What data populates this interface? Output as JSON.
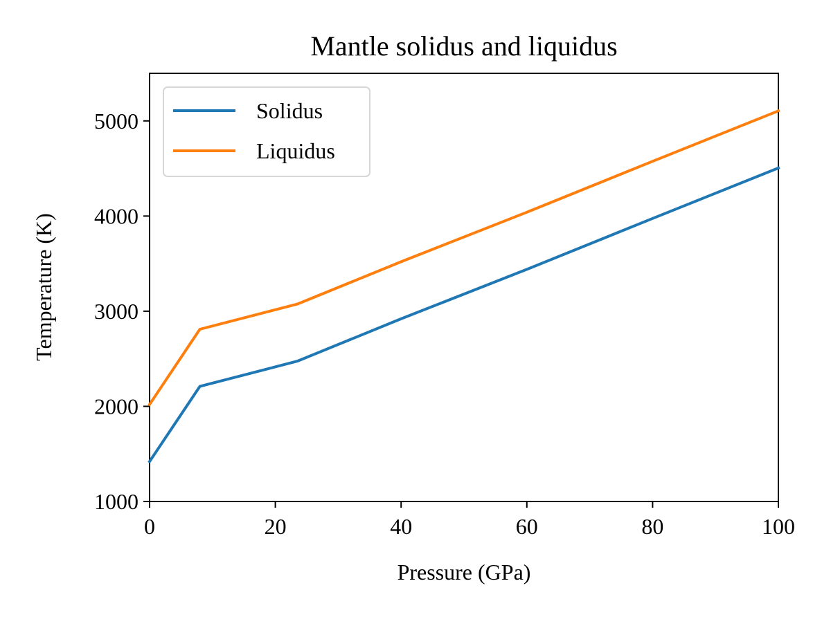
{
  "chart_data": {
    "type": "line",
    "title": "Mantle solidus and liquidus",
    "xlabel": "Pressure (GPa)",
    "ylabel": "Temperature (K)",
    "xlim": [
      0,
      100
    ],
    "ylim": [
      1000,
      5500
    ],
    "xticks": [
      0,
      20,
      40,
      60,
      80,
      100
    ],
    "yticks": [
      1000,
      2000,
      3000,
      4000,
      5000
    ],
    "grid": false,
    "legend_position": "top-left",
    "series": [
      {
        "name": "Solidus",
        "color": "#1f77b4",
        "points": [
          [
            0,
            1420
          ],
          [
            8,
            2210
          ],
          [
            23.5,
            2475
          ],
          [
            40,
            2920
          ],
          [
            60,
            3440
          ],
          [
            80,
            3975
          ],
          [
            100,
            4505
          ]
        ]
      },
      {
        "name": "Liquidus",
        "color": "#ff7f0e",
        "points": [
          [
            0,
            2020
          ],
          [
            8,
            2810
          ],
          [
            23.5,
            3075
          ],
          [
            40,
            3520
          ],
          [
            60,
            4040
          ],
          [
            80,
            4575
          ],
          [
            100,
            5105
          ]
        ]
      }
    ]
  }
}
